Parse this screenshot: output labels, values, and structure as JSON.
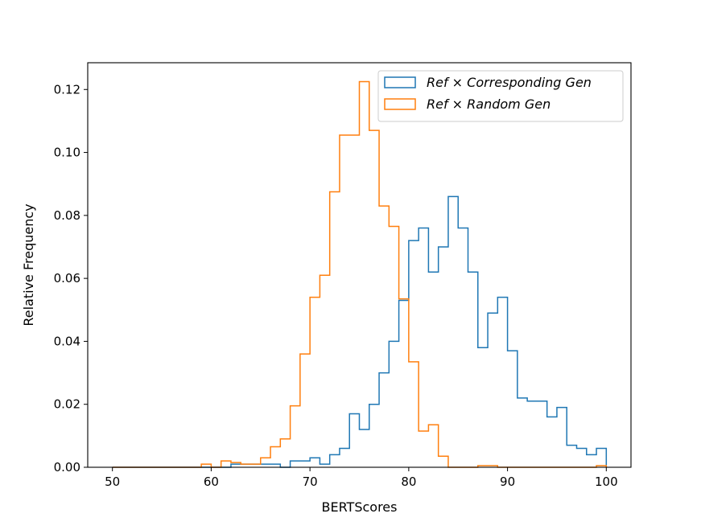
{
  "chart_data": {
    "type": "histogram",
    "xlabel": "BERTScores",
    "ylabel": "Relative Frequency",
    "xlim": [
      47.5,
      102.5
    ],
    "ylim": [
      0,
      0.1285
    ],
    "xticks": [
      50,
      60,
      70,
      80,
      90,
      100
    ],
    "yticks": [
      0.0,
      0.02,
      0.04,
      0.06,
      0.08,
      0.1,
      0.12
    ],
    "xtick_labels": [
      "50",
      "60",
      "70",
      "80",
      "90",
      "100"
    ],
    "ytick_labels": [
      "0.00",
      "0.02",
      "0.04",
      "0.06",
      "0.08",
      "0.10",
      "0.12"
    ],
    "grid": false,
    "legend_position": "top-right",
    "series": [
      {
        "name": "Ref × Corresponding Gen",
        "color": "#1f77b4",
        "bin_edges": [
          50,
          51,
          52,
          53,
          54,
          55,
          56,
          57,
          58,
          59,
          60,
          61,
          62,
          63,
          64,
          65,
          66,
          67,
          68,
          69,
          70,
          71,
          72,
          73,
          74,
          75,
          76,
          77,
          78,
          79,
          80,
          81,
          82,
          83,
          84,
          85,
          86,
          87,
          88,
          89,
          90,
          91,
          92,
          93,
          94,
          95,
          96,
          97,
          98,
          99,
          100
        ],
        "values": [
          0,
          0,
          0,
          0,
          0,
          0,
          0,
          0,
          0,
          0,
          0,
          0,
          0.001,
          0.001,
          0.001,
          0.001,
          0.001,
          0,
          0.002,
          0.002,
          0.003,
          0.001,
          0.004,
          0.006,
          0.017,
          0.012,
          0.02,
          0.03,
          0.04,
          0.053,
          0.072,
          0.076,
          0.062,
          0.07,
          0.086,
          0.076,
          0.062,
          0.038,
          0.049,
          0.054,
          0.037,
          0.022,
          0.021,
          0.021,
          0.016,
          0.019,
          0.007,
          0.006,
          0.004,
          0.006
        ]
      },
      {
        "name": "Ref × Random Gen",
        "color": "#ff7f0e",
        "bin_edges": [
          50,
          51,
          52,
          53,
          54,
          55,
          56,
          57,
          58,
          59,
          60,
          61,
          62,
          63,
          64,
          65,
          66,
          67,
          68,
          69,
          70,
          71,
          72,
          73,
          74,
          75,
          76,
          77,
          78,
          79,
          80,
          81,
          82,
          83,
          84,
          85,
          86,
          87,
          88,
          89,
          90,
          91,
          92,
          93,
          94,
          95,
          96,
          97,
          98,
          99,
          100
        ],
        "values": [
          0,
          0,
          0,
          0,
          0,
          0,
          0,
          0,
          0,
          0.001,
          0,
          0.002,
          0.0015,
          0.001,
          0.001,
          0.003,
          0.0065,
          0.009,
          0.0195,
          0.036,
          0.054,
          0.061,
          0.0875,
          0.1055,
          0.1055,
          0.1225,
          0.107,
          0.083,
          0.0765,
          0.0535,
          0.0335,
          0.0115,
          0.0135,
          0.0035,
          0,
          0,
          0,
          0.0005,
          0.0005,
          0,
          0,
          0,
          0,
          0,
          0,
          0,
          0,
          0,
          0,
          0.0005
        ]
      }
    ]
  }
}
